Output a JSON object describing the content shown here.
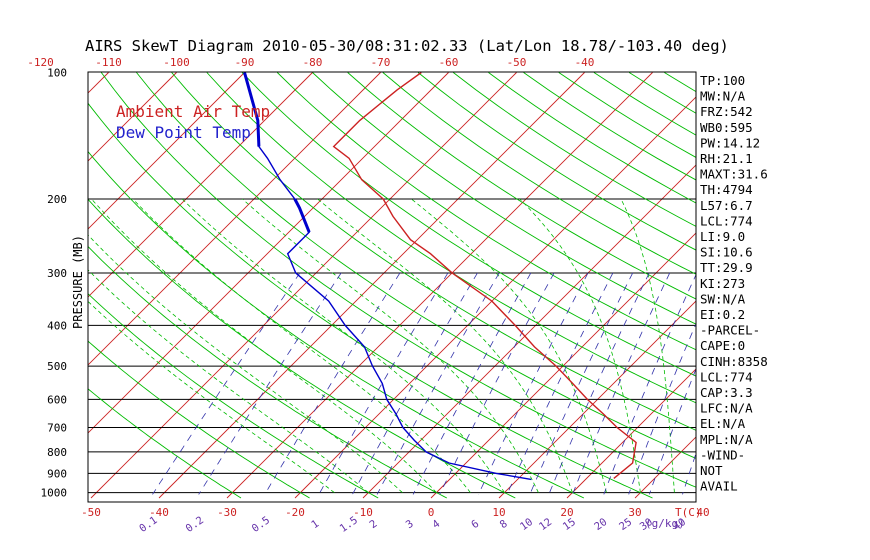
{
  "chart_data": {
    "type": "line",
    "title": "AIRS SkewT Diagram 2010-05-30/08:31:02.33 (Lat/Lon 18.78/-103.40 deg)",
    "ylabel": "PRESSURE (MB)",
    "xlabel_bottom": "T(C)",
    "mixing_ratio_unit": "(g/kg)",
    "legend": {
      "placement": "top-left",
      "entries": [
        {
          "label": "Ambient Air Temp",
          "color": "#cc2222"
        },
        {
          "label": "Dew Point Temp",
          "color": "#2222cc"
        }
      ]
    },
    "colors": {
      "temp": "#cc2222",
      "dew": "#0000cc",
      "isotherm": "#cc2222",
      "dry_adiabat": "#00bb00",
      "moist_adiabat": "#00bb00",
      "mixing_ratio": "#3333aa",
      "tick_text": "#cc2222",
      "mr_text": "#6633aa",
      "axis": "#000000"
    },
    "pressure_ticks": [
      "100",
      "200",
      "300",
      "400",
      "500",
      "600",
      "700",
      "800",
      "900",
      "1000"
    ],
    "pressure_lines": [
      200,
      300,
      400,
      500,
      600,
      700,
      800,
      900,
      1000
    ],
    "bottom_temp_ticks": [
      -50,
      -40,
      -30,
      -20,
      -10,
      0,
      10,
      20,
      30,
      40
    ],
    "top_temp_ticks": [
      -120,
      -110,
      -100,
      -90,
      -80,
      -70,
      -60,
      -50,
      -40
    ],
    "mixing_ratio_ticks": [
      "0.1",
      "0.2",
      "0.5",
      "1",
      "1.5",
      "2",
      "3",
      "4",
      "6",
      "8",
      "10",
      "12",
      "15",
      "20",
      "25",
      "30",
      "40"
    ],
    "mixing_ratio_values": [
      0.1,
      0.2,
      0.5,
      1,
      1.5,
      2,
      3,
      4,
      6,
      8,
      10,
      12,
      15,
      20,
      25,
      30,
      40
    ],
    "temperature_profile": {
      "name": "Ambient Air Temp",
      "pressure": [
        925,
        850,
        760,
        700,
        650,
        600,
        550,
        500,
        450,
        400,
        350,
        300,
        270,
        250,
        220,
        200,
        180,
        160,
        150,
        130,
        110,
        100
      ],
      "temp": [
        24,
        24.5,
        22,
        17,
        13,
        8.5,
        4,
        -1,
        -7,
        -13,
        -20,
        -30,
        -36,
        -41,
        -47,
        -51,
        -57,
        -62,
        -66,
        -66,
        -65,
        -64
      ]
    },
    "dewpoint_profile": {
      "name": "Dew Point Temp",
      "pressure": [
        930,
        900,
        850,
        800,
        750,
        700,
        650,
        600,
        550,
        500,
        450,
        400,
        350,
        300,
        270,
        250,
        240,
        210,
        200,
        180,
        160,
        150,
        130,
        100
      ],
      "dewpoint": [
        12,
        6,
        -2.5,
        -7.5,
        -11,
        -14.5,
        -17.5,
        -21,
        -24,
        -28,
        -32,
        -38,
        -44,
        -53,
        -57,
        -57,
        -57,
        -62,
        -64,
        -69,
        -74,
        -77,
        -81,
        -90
      ]
    }
  },
  "indices": [
    "TP:100",
    "MW:N/A",
    "FRZ:542",
    "WB0:595",
    "PW:14.12",
    "RH:21.1",
    "MAXT:31.6",
    "TH:4794",
    "L57:6.7",
    "LCL:774",
    "LI:9.0",
    "SI:10.6",
    "TT:29.9",
    "KI:273",
    "SW:N/A",
    "EI:0.2",
    "-PARCEL-",
    "CAPE:0",
    "CINH:8358",
    "LCL:774",
    "CAP:3.3",
    "LFC:N/A",
    "EL:N/A",
    "MPL:N/A",
    "-WIND-",
    "NOT",
    "AVAIL"
  ]
}
